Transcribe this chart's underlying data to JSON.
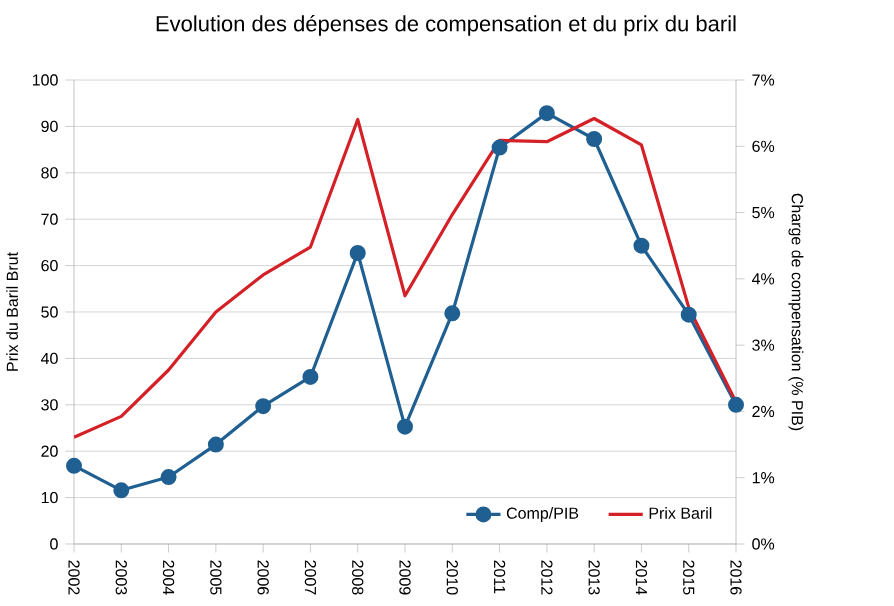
{
  "chart_data": {
    "type": "line",
    "title": "Evolution des dépenses de compensation et du prix du baril",
    "ylabel": "Prix du Baril Brut",
    "y2label": "Charge de compensation (%  PIB)",
    "categories": [
      "2002",
      "2003",
      "2004",
      "2005",
      "2006",
      "2007",
      "2008",
      "2009",
      "2010",
      "2011",
      "2012",
      "2013",
      "2014",
      "2015",
      "2016"
    ],
    "series": [
      {
        "name": "Comp/PIB",
        "color": "#1f5f91",
        "axis": "y2",
        "marker": "circle",
        "values": [
          1.18,
          0.81,
          1.01,
          1.5,
          2.08,
          2.52,
          4.39,
          1.77,
          3.48,
          5.98,
          6.5,
          6.11,
          4.5,
          3.46,
          2.1
        ]
      },
      {
        "name": "Prix Baril",
        "color": "#d42027",
        "marker": "none",
        "values": [
          23,
          27.5,
          37.5,
          50,
          58,
          64,
          91.5,
          53.5,
          71,
          87,
          86.7,
          91.7,
          86,
          51,
          30.6
        ]
      }
    ],
    "ylim": [
      0,
      100
    ],
    "yticks": [
      0,
      10,
      20,
      30,
      40,
      50,
      60,
      70,
      80,
      90,
      100
    ],
    "y2lim": [
      0,
      7
    ],
    "y2ticks": [
      {
        "value": 0,
        "label": "0%"
      },
      {
        "value": 1,
        "label": "1%"
      },
      {
        "value": 2,
        "label": "2%"
      },
      {
        "value": 3,
        "label": "3%"
      },
      {
        "value": 4,
        "label": "4%"
      },
      {
        "value": 5,
        "label": "5%"
      },
      {
        "value": 6,
        "label": "6%"
      },
      {
        "value": 7,
        "label": "7%"
      }
    ],
    "grid": "y",
    "legend": "bottom right",
    "line_style": "solid"
  }
}
